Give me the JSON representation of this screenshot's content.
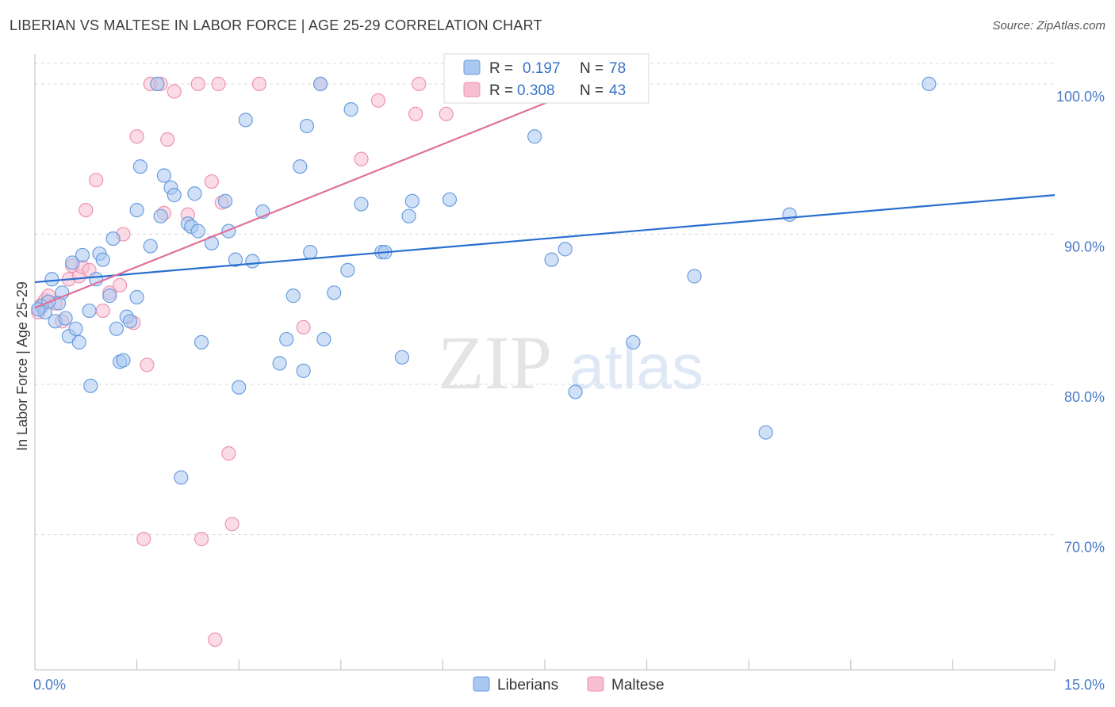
{
  "title": "LIBERIAN VS MALTESE IN LABOR FORCE | AGE 25-29 CORRELATION CHART",
  "source": "Source: ZipAtlas.com",
  "watermark": {
    "zip": "ZIP",
    "atlas": "atlas"
  },
  "colors": {
    "blue_fill": "#a9c8f0",
    "blue_stroke": "#6b9de0",
    "blue_line": "#2a6fd0",
    "pink_fill": "#f7bdd0",
    "pink_stroke": "#ee93b2",
    "pink_line": "#e0709a",
    "tick_text": "#4a7cc8",
    "grid": "#d8d8d8"
  },
  "legend": {
    "row1": {
      "r_label": "R =",
      "r_value": "0.197",
      "n_label": "N =",
      "n_value": "78"
    },
    "row2": {
      "r_label": "R =",
      "r_value": "0.308",
      "n_label": "N =",
      "n_value": "43"
    }
  },
  "bottom_legend": [
    "Liberians",
    "Maltese"
  ],
  "chart_data": {
    "type": "scatter",
    "ylabel": "In Labor Force | Age 25-29",
    "xlim": [
      0,
      15
    ],
    "ylim": [
      61,
      102
    ],
    "x_ticks": [
      {
        "value": 0,
        "label": "0.0%"
      },
      {
        "value": 15,
        "label": "15.0%"
      }
    ],
    "y_ticks": [
      {
        "value": 70,
        "label": "70.0%"
      },
      {
        "value": 80,
        "label": "80.0%"
      },
      {
        "value": 90,
        "label": "90.0%"
      },
      {
        "value": 100,
        "label": "100.0%"
      }
    ],
    "grid": "horizontal dashed",
    "legend_position": "top-center",
    "series": [
      {
        "name": "Liberians",
        "color": "#a9c8f0",
        "trend": {
          "x": [
            0,
            15
          ],
          "y": [
            86.8,
            92.6
          ]
        },
        "points": [
          [
            0.1,
            85.2
          ],
          [
            0.15,
            84.8
          ],
          [
            0.25,
            87.0
          ],
          [
            0.3,
            84.2
          ],
          [
            0.4,
            86.1
          ],
          [
            0.45,
            84.4
          ],
          [
            0.5,
            83.2
          ],
          [
            0.55,
            88.1
          ],
          [
            0.6,
            83.7
          ],
          [
            0.65,
            82.8
          ],
          [
            0.7,
            88.6
          ],
          [
            0.8,
            84.9
          ],
          [
            0.82,
            79.9
          ],
          [
            0.9,
            87.0
          ],
          [
            0.95,
            88.7
          ],
          [
            1.0,
            88.3
          ],
          [
            1.1,
            85.9
          ],
          [
            1.15,
            89.7
          ],
          [
            1.2,
            83.7
          ],
          [
            1.25,
            81.5
          ],
          [
            1.3,
            81.6
          ],
          [
            1.35,
            84.5
          ],
          [
            1.4,
            84.2
          ],
          [
            1.5,
            91.6
          ],
          [
            1.5,
            85.8
          ],
          [
            1.55,
            94.5
          ],
          [
            1.7,
            89.2
          ],
          [
            1.8,
            100.0
          ],
          [
            1.85,
            91.2
          ],
          [
            1.9,
            93.9
          ],
          [
            2.0,
            93.1
          ],
          [
            2.05,
            92.6
          ],
          [
            2.15,
            73.8
          ],
          [
            2.25,
            90.7
          ],
          [
            2.3,
            90.5
          ],
          [
            2.35,
            92.7
          ],
          [
            2.4,
            90.2
          ],
          [
            2.45,
            82.8
          ],
          [
            2.6,
            89.4
          ],
          [
            2.8,
            92.2
          ],
          [
            2.85,
            90.2
          ],
          [
            2.95,
            88.3
          ],
          [
            3.0,
            79.8
          ],
          [
            3.1,
            97.6
          ],
          [
            3.2,
            88.2
          ],
          [
            3.35,
            91.5
          ],
          [
            3.6,
            81.4
          ],
          [
            3.7,
            83.0
          ],
          [
            3.8,
            85.9
          ],
          [
            3.9,
            94.5
          ],
          [
            3.95,
            80.9
          ],
          [
            4.0,
            97.2
          ],
          [
            4.05,
            88.8
          ],
          [
            4.2,
            100.0
          ],
          [
            4.25,
            83.0
          ],
          [
            4.4,
            86.1
          ],
          [
            4.6,
            87.6
          ],
          [
            4.65,
            98.3
          ],
          [
            4.8,
            92.0
          ],
          [
            5.1,
            88.8
          ],
          [
            5.15,
            88.8
          ],
          [
            5.4,
            81.8
          ],
          [
            5.5,
            91.2
          ],
          [
            5.55,
            92.2
          ],
          [
            6.1,
            92.3
          ],
          [
            7.0,
            100.0
          ],
          [
            7.35,
            96.5
          ],
          [
            7.6,
            88.3
          ],
          [
            7.8,
            89.0
          ],
          [
            7.95,
            79.5
          ],
          [
            8.8,
            82.8
          ],
          [
            9.7,
            87.2
          ],
          [
            10.75,
            76.8
          ],
          [
            11.1,
            91.3
          ],
          [
            13.15,
            100.0
          ],
          [
            0.05,
            85.0
          ],
          [
            0.35,
            85.4
          ],
          [
            0.2,
            85.5
          ]
        ]
      },
      {
        "name": "Maltese",
        "color": "#f7bdd0",
        "trend": {
          "x": [
            0,
            8.1
          ],
          "y": [
            85.1,
            99.8
          ]
        },
        "points": [
          [
            0.05,
            84.8
          ],
          [
            0.1,
            85.3
          ],
          [
            0.15,
            85.6
          ],
          [
            0.2,
            85.9
          ],
          [
            0.3,
            85.4
          ],
          [
            0.4,
            84.2
          ],
          [
            0.5,
            87.0
          ],
          [
            0.55,
            87.9
          ],
          [
            0.65,
            87.2
          ],
          [
            0.7,
            87.8
          ],
          [
            0.75,
            91.6
          ],
          [
            0.8,
            87.6
          ],
          [
            0.9,
            93.6
          ],
          [
            1.0,
            84.9
          ],
          [
            1.1,
            86.1
          ],
          [
            1.25,
            86.6
          ],
          [
            1.3,
            90.0
          ],
          [
            1.45,
            84.1
          ],
          [
            1.5,
            96.5
          ],
          [
            1.6,
            69.7
          ],
          [
            1.65,
            81.3
          ],
          [
            1.7,
            100.0
          ],
          [
            1.85,
            100.0
          ],
          [
            1.9,
            91.4
          ],
          [
            1.95,
            96.3
          ],
          [
            2.05,
            99.5
          ],
          [
            2.25,
            91.3
          ],
          [
            2.4,
            100.0
          ],
          [
            2.45,
            69.7
          ],
          [
            2.6,
            93.5
          ],
          [
            2.65,
            63.0
          ],
          [
            2.75,
            92.1
          ],
          [
            2.85,
            75.4
          ],
          [
            2.9,
            70.7
          ],
          [
            2.7,
            100.0
          ],
          [
            3.3,
            100.0
          ],
          [
            3.95,
            83.8
          ],
          [
            4.2,
            100.0
          ],
          [
            4.8,
            95.0
          ],
          [
            5.05,
            98.9
          ],
          [
            5.6,
            98.0
          ],
          [
            5.65,
            100.0
          ],
          [
            6.05,
            98.0
          ]
        ]
      }
    ]
  }
}
